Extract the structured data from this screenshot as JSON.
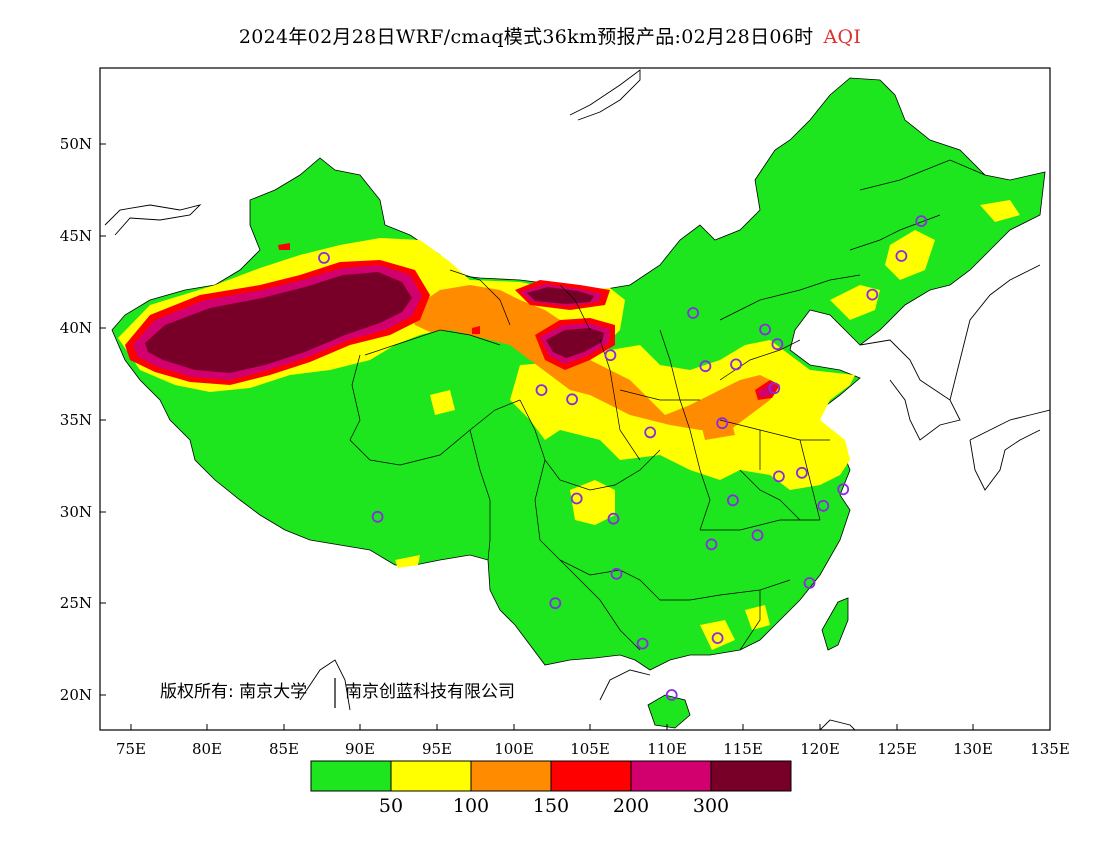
{
  "title": {
    "text": "2024年02月28日WRF/cmaq模式36km预报产品:02月28日06时",
    "product": "AQI"
  },
  "axes": {
    "lat_labels": [
      "50N",
      "45N",
      "40N",
      "35N",
      "30N",
      "25N",
      "20N"
    ],
    "lon_labels": [
      "75E",
      "80E",
      "85E",
      "90E",
      "95E",
      "100E",
      "105E",
      "110E",
      "115E",
      "120E",
      "125E",
      "130E",
      "135E"
    ],
    "lon_range": [
      73,
      135
    ],
    "lat_range": [
      18,
      54
    ]
  },
  "copyright": {
    "prefix": "版权所有: 南京大学",
    "second": "南京创蓝科技有限公司"
  },
  "legend": {
    "colors": [
      "#1ee61e",
      "#ffff00",
      "#ff8c00",
      "#ff0000",
      "#d2006e",
      "#780028"
    ],
    "labels": [
      "50",
      "100",
      "150",
      "200",
      "300"
    ]
  },
  "colors": {
    "good": "#1ee61e",
    "moderate": "#ffff00",
    "usg": "#ff8c00",
    "unhealthy": "#ff0000",
    "very_unhealthy": "#d2006e",
    "hazardous": "#780028",
    "station": "#8a2be2"
  },
  "stations": [
    [
      87.6,
      43.8
    ],
    [
      91.1,
      29.7
    ],
    [
      101.8,
      36.6
    ],
    [
      103.8,
      36.1
    ],
    [
      106.3,
      38.5
    ],
    [
      108.9,
      34.3
    ],
    [
      104.1,
      30.7
    ],
    [
      106.5,
      29.6
    ],
    [
      106.7,
      26.6
    ],
    [
      102.7,
      25.0
    ],
    [
      108.4,
      22.8
    ],
    [
      110.3,
      20.0
    ],
    [
      111.7,
      40.8
    ],
    [
      112.5,
      37.9
    ],
    [
      114.5,
      38.0
    ],
    [
      116.4,
      39.9
    ],
    [
      117.2,
      39.1
    ],
    [
      117.0,
      36.7
    ],
    [
      113.6,
      34.8
    ],
    [
      114.3,
      30.6
    ],
    [
      112.9,
      28.2
    ],
    [
      115.9,
      28.7
    ],
    [
      117.3,
      31.9
    ],
    [
      118.8,
      32.1
    ],
    [
      120.2,
      30.3
    ],
    [
      121.5,
      31.2
    ],
    [
      119.3,
      26.1
    ],
    [
      113.3,
      23.1
    ],
    [
      123.4,
      41.8
    ],
    [
      125.3,
      43.9
    ],
    [
      126.6,
      45.8
    ]
  ]
}
